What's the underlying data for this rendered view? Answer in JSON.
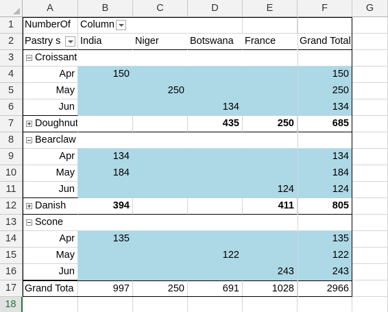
{
  "sheet": {
    "columns": [
      "A",
      "B",
      "C",
      "D",
      "E",
      "F",
      "G"
    ],
    "rows": [
      "1",
      "2",
      "3",
      "4",
      "5",
      "6",
      "7",
      "8",
      "9",
      "10",
      "11",
      "12",
      "13",
      "14",
      "15",
      "16",
      "17",
      "18"
    ],
    "selected_row": "18"
  },
  "pivot": {
    "value_field": "NumberOf",
    "column_labels": "Column",
    "row_labels": "Pastry s",
    "column_headers": [
      "India",
      "Niger",
      "Botswana",
      "France",
      "Grand Total"
    ],
    "groups": [
      {
        "name": "Croissant",
        "expanded": true,
        "months": [
          {
            "label": "Apr",
            "values": [
              "150",
              "",
              "",
              "",
              "150"
            ]
          },
          {
            "label": "May",
            "values": [
              "",
              "250",
              "",
              "",
              "250"
            ]
          },
          {
            "label": "Jun",
            "values": [
              "",
              "",
              "134",
              "",
              "134"
            ]
          }
        ]
      },
      {
        "name": "Doughnut",
        "expanded": false,
        "totals": [
          "",
          "",
          "435",
          "250",
          "685"
        ]
      },
      {
        "name": "Bearclaw",
        "expanded": true,
        "months": [
          {
            "label": "Apr",
            "values": [
              "134",
              "",
              "",
              "",
              "134"
            ]
          },
          {
            "label": "May",
            "values": [
              "184",
              "",
              "",
              "",
              "184"
            ]
          },
          {
            "label": "Jun",
            "values": [
              "",
              "",
              "",
              "124",
              "124"
            ]
          }
        ]
      },
      {
        "name": "Danish",
        "expanded": false,
        "totals": [
          "394",
          "",
          "",
          "411",
          "805"
        ]
      },
      {
        "name": "Scone",
        "expanded": true,
        "months": [
          {
            "label": "Apr",
            "values": [
              "135",
              "",
              "",
              "",
              "135"
            ]
          },
          {
            "label": "May",
            "values": [
              "",
              "",
              "122",
              "",
              "122"
            ]
          },
          {
            "label": "Jun",
            "values": [
              "",
              "",
              "",
              "243",
              "243"
            ]
          }
        ]
      }
    ],
    "grand_total": {
      "label": "Grand Tota",
      "values": [
        "997",
        "250",
        "691",
        "1028",
        "2966"
      ]
    }
  },
  "colors": {
    "highlight": "#add8e6",
    "selected_header": "#217346"
  }
}
